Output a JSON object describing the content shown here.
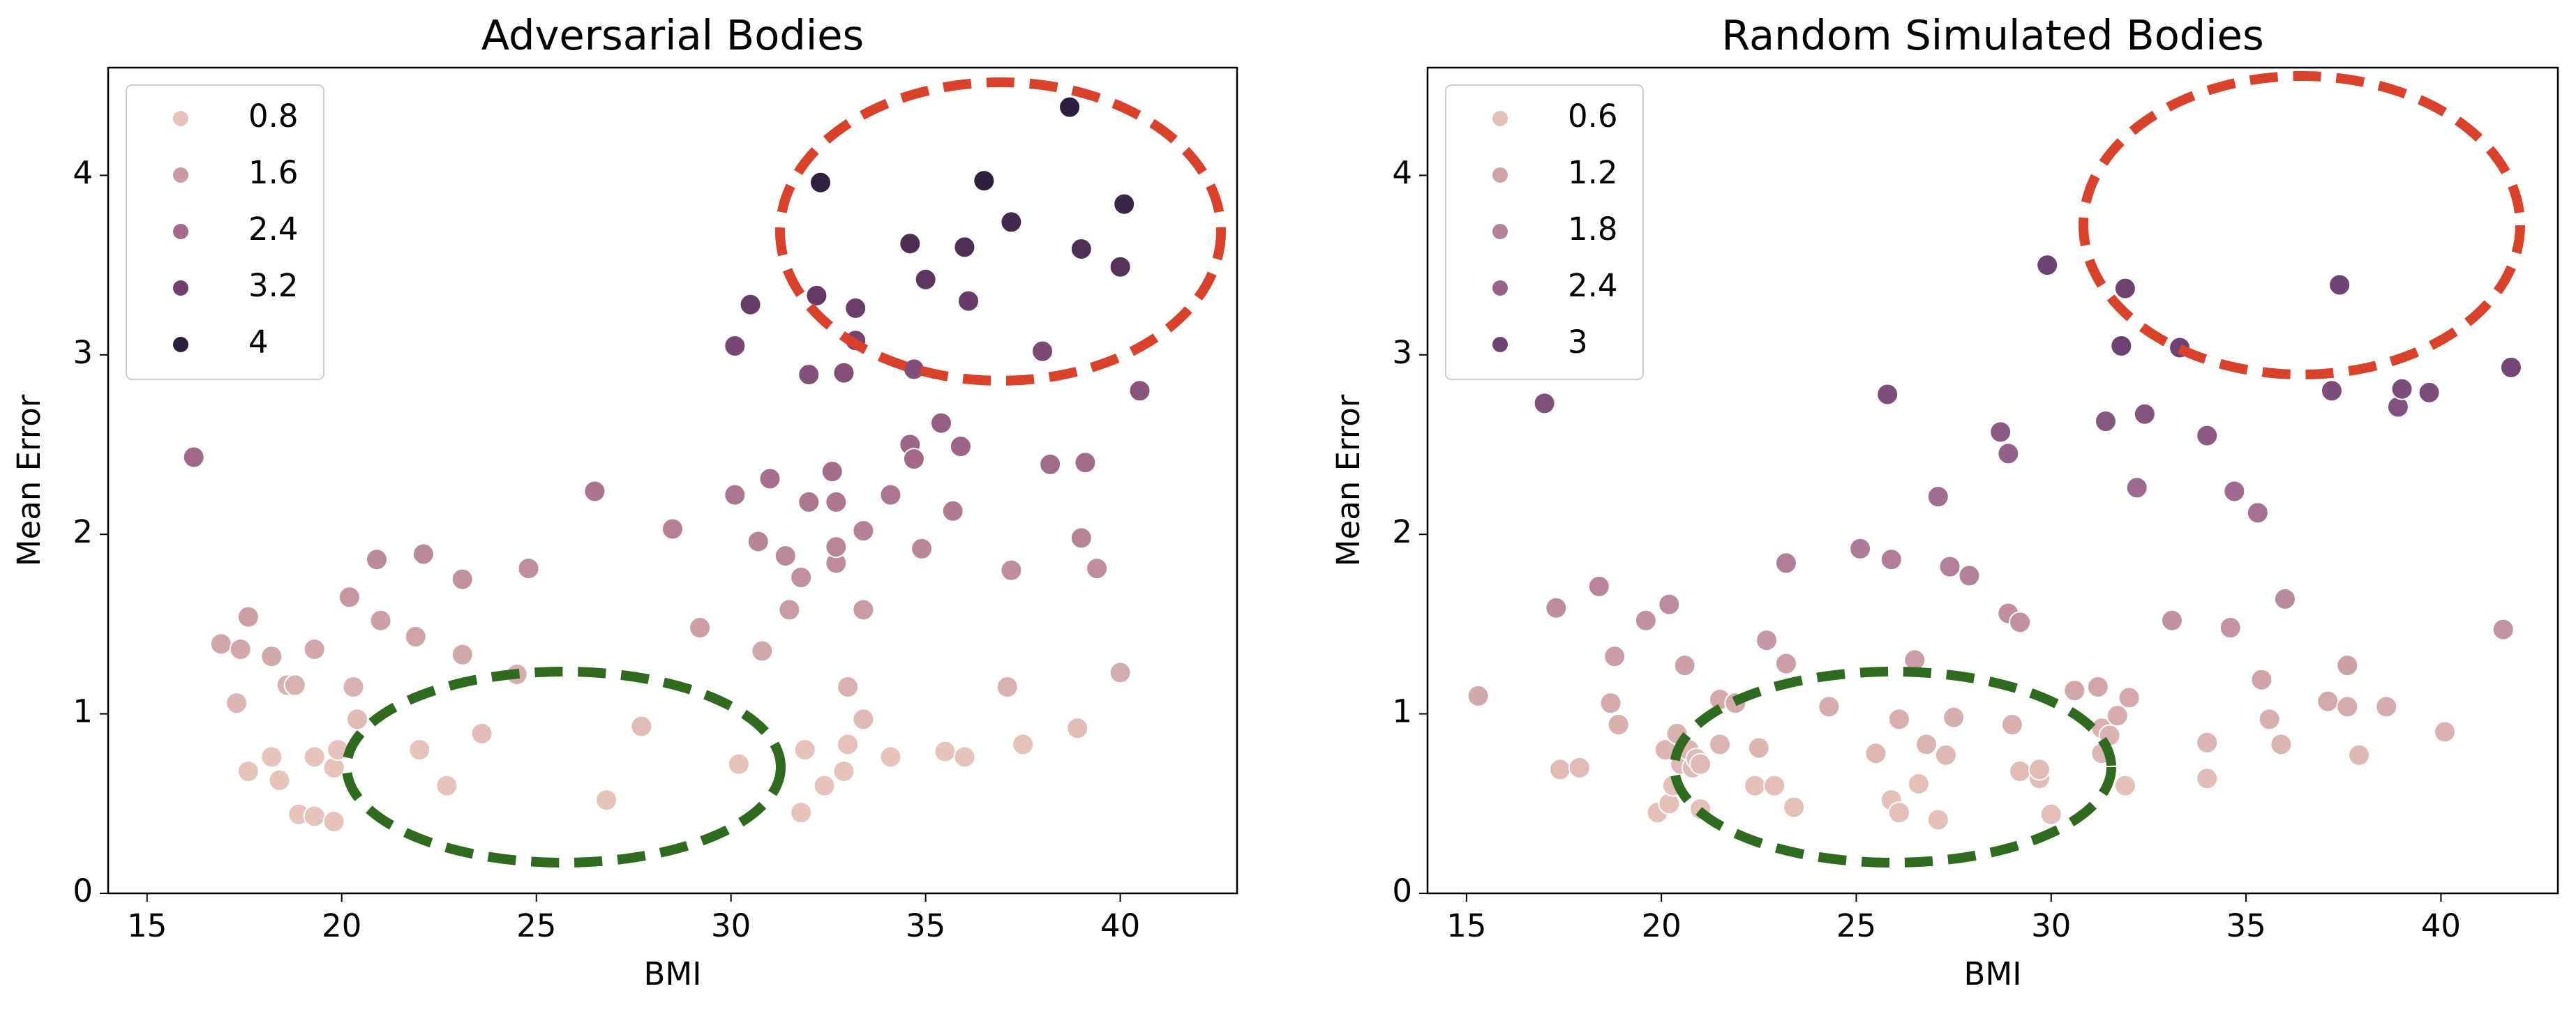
{
  "chart_data": [
    {
      "type": "scatter",
      "title": "Adversarial Bodies",
      "x_label": "BMI",
      "y_label": "Mean Error",
      "xlim": [
        14,
        43
      ],
      "ylim": [
        0,
        4.6
      ],
      "xticks": [
        15,
        20,
        25,
        30,
        35,
        40
      ],
      "yticks": [
        0,
        1,
        2,
        3,
        4
      ],
      "legend": {
        "values": [
          0.8,
          1.6,
          2.4,
          3.2,
          4.0
        ],
        "colors": [
          "#e6c3bb",
          "#c99aa3",
          "#a36a8a",
          "#6f3f6e",
          "#2c1e3d"
        ],
        "corner": "upper left"
      },
      "x": [
        16.2,
        16.9,
        17.4,
        17.3,
        17.6,
        17.6,
        18.2,
        18.2,
        18.4,
        18.6,
        18.8,
        18.9,
        19.3,
        19.3,
        19.3,
        19.8,
        19.8,
        19.9,
        20.2,
        20.3,
        20.4,
        20.9,
        21.0,
        21.9,
        22.0,
        22.1,
        22.7,
        23.1,
        23.1,
        23.6,
        24.5,
        24.8,
        26.5,
        26.8,
        27.7,
        28.5,
        29.2,
        30.1,
        30.1,
        30.2,
        30.5,
        30.7,
        30.8,
        31.0,
        31.4,
        31.5,
        31.8,
        31.8,
        31.9,
        32.0,
        32.0,
        32.2,
        32.3,
        32.4,
        32.6,
        32.7,
        32.7,
        32.7,
        32.9,
        32.9,
        33.0,
        33.0,
        33.2,
        33.2,
        33.4,
        33.4,
        33.4,
        34.1,
        34.1,
        34.6,
        34.6,
        34.7,
        34.7,
        34.9,
        35.0,
        35.4,
        35.5,
        35.7,
        35.9,
        36.0,
        36.0,
        36.1,
        36.5,
        37.1,
        37.2,
        37.2,
        37.5,
        38.0,
        38.2,
        38.7,
        38.9,
        39.0,
        39.0,
        39.1,
        39.4,
        40.0,
        40.0,
        40.1,
        40.5
      ],
      "y": [
        2.43,
        1.39,
        1.36,
        1.06,
        1.54,
        0.68,
        1.32,
        0.76,
        0.63,
        1.16,
        1.16,
        0.44,
        0.43,
        0.76,
        1.36,
        0.4,
        0.7,
        0.8,
        1.65,
        1.15,
        0.97,
        1.86,
        1.52,
        1.43,
        0.8,
        1.89,
        0.6,
        1.75,
        1.33,
        0.89,
        1.22,
        1.81,
        2.24,
        0.52,
        0.93,
        2.03,
        1.48,
        2.22,
        3.05,
        0.72,
        3.28,
        1.96,
        1.35,
        2.31,
        1.88,
        1.58,
        1.76,
        0.45,
        0.8,
        2.18,
        2.89,
        3.33,
        3.96,
        0.6,
        2.35,
        1.84,
        1.93,
        2.18,
        0.68,
        2.9,
        1.15,
        0.83,
        3.08,
        3.26,
        1.58,
        0.97,
        2.02,
        2.22,
        0.76,
        2.5,
        3.62,
        2.42,
        2.92,
        1.92,
        3.42,
        2.62,
        0.79,
        2.13,
        2.49,
        3.6,
        0.76,
        3.3,
        3.97,
        1.15,
        3.74,
        1.8,
        0.83,
        3.02,
        2.39,
        4.38,
        0.92,
        3.59,
        1.98,
        2.4,
        1.81,
        3.49,
        1.23,
        3.84,
        2.8
      ]
    },
    {
      "type": "scatter",
      "title": "Random Simulated Bodies",
      "x_label": "BMI",
      "y_label": "Mean Error",
      "xlim": [
        14,
        43
      ],
      "ylim": [
        0,
        4.6
      ],
      "xticks": [
        15,
        20,
        25,
        30,
        35,
        40
      ],
      "yticks": [
        0,
        1,
        2,
        3,
        4
      ],
      "legend": {
        "values": [
          0.6,
          1.2,
          1.8,
          2.4,
          3.0
        ],
        "colors": [
          "#e4c0b9",
          "#d0a3a9",
          "#b4809a",
          "#97628a",
          "#6e4272"
        ],
        "corner": "upper left"
      },
      "x": [
        15.3,
        17.0,
        17.3,
        17.4,
        17.9,
        18.4,
        18.7,
        18.8,
        18.9,
        19.6,
        19.9,
        20.1,
        20.2,
        20.2,
        20.3,
        20.4,
        20.5,
        20.6,
        20.7,
        20.8,
        20.9,
        21.0,
        21.0,
        21.5,
        21.5,
        21.9,
        22.4,
        22.5,
        22.7,
        22.9,
        23.2,
        23.2,
        23.4,
        24.3,
        25.1,
        25.5,
        25.8,
        25.9,
        25.9,
        26.1,
        26.1,
        26.5,
        26.6,
        26.8,
        27.1,
        27.1,
        27.3,
        27.4,
        27.5,
        27.9,
        28.7,
        28.9,
        28.9,
        29.0,
        29.2,
        29.2,
        29.7,
        29.7,
        29.9,
        30.0,
        30.6,
        31.2,
        31.3,
        31.3,
        31.4,
        31.5,
        31.7,
        31.8,
        31.9,
        31.9,
        32.0,
        32.2,
        32.4,
        33.1,
        33.3,
        34.0,
        34.0,
        34.0,
        34.6,
        34.7,
        35.3,
        35.4,
        35.6,
        35.9,
        36.0,
        37.1,
        37.2,
        37.4,
        37.6,
        37.6,
        37.9,
        38.6,
        38.9,
        39.0,
        39.7,
        40.1,
        41.6,
        41.8
      ],
      "y": [
        1.1,
        2.73,
        1.59,
        0.69,
        0.7,
        1.71,
        1.06,
        1.32,
        0.94,
        1.52,
        0.45,
        0.8,
        1.61,
        0.5,
        0.6,
        0.89,
        0.72,
        1.27,
        0.8,
        0.7,
        0.75,
        0.47,
        0.72,
        1.08,
        0.83,
        1.06,
        0.6,
        0.81,
        1.41,
        0.6,
        1.84,
        1.28,
        0.48,
        1.04,
        1.92,
        0.78,
        2.78,
        1.86,
        0.52,
        0.45,
        0.97,
        1.3,
        0.61,
        0.83,
        2.21,
        0.41,
        0.77,
        1.82,
        0.98,
        1.77,
        2.57,
        2.45,
        1.56,
        0.94,
        0.68,
        1.51,
        0.64,
        0.69,
        3.5,
        0.44,
        1.13,
        1.15,
        0.92,
        0.78,
        2.63,
        0.88,
        0.99,
        3.05,
        0.6,
        3.37,
        1.09,
        2.26,
        2.67,
        1.52,
        3.04,
        2.55,
        0.84,
        0.64,
        1.48,
        2.24,
        2.12,
        1.19,
        0.97,
        0.83,
        1.64,
        1.07,
        2.8,
        3.39,
        1.27,
        1.04,
        0.77,
        1.04,
        2.71,
        2.81,
        2.79,
        0.9,
        1.47,
        2.93
      ]
    }
  ]
}
